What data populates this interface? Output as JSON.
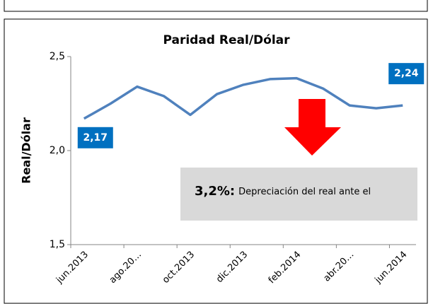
{
  "chart_data": {
    "type": "line",
    "title": "Paridad Real/Dólar",
    "y_label": "Real/Dólar",
    "categories": [
      "jun.2013",
      null,
      "ago.20…",
      null,
      "oct.2013",
      null,
      "dic.2013",
      null,
      "feb.2014",
      null,
      "abr.20…",
      null,
      "jun.2014"
    ],
    "series": [
      {
        "name": "Real/Dólar",
        "color": "#4f81bd",
        "values": [
          2.17,
          2.25,
          2.34,
          2.29,
          2.19,
          2.3,
          2.35,
          2.38,
          2.385,
          2.33,
          2.24,
          2.225,
          2.24
        ],
        "value_labels": [
          "2,17",
          null,
          null,
          null,
          null,
          null,
          null,
          null,
          null,
          null,
          null,
          null,
          "2,24"
        ]
      }
    ],
    "label_color": "#0070c0",
    "ylim": [
      1.5,
      2.5
    ],
    "yticks": [
      {
        "value": 1.5,
        "label": "1,5"
      },
      {
        "value": 2.0,
        "label": "2,0"
      },
      {
        "value": 2.5,
        "label": "2,5"
      }
    ],
    "grid": false,
    "annotation": {
      "bold": "3,2%:",
      "text": "Depreciación del real ante el"
    }
  }
}
